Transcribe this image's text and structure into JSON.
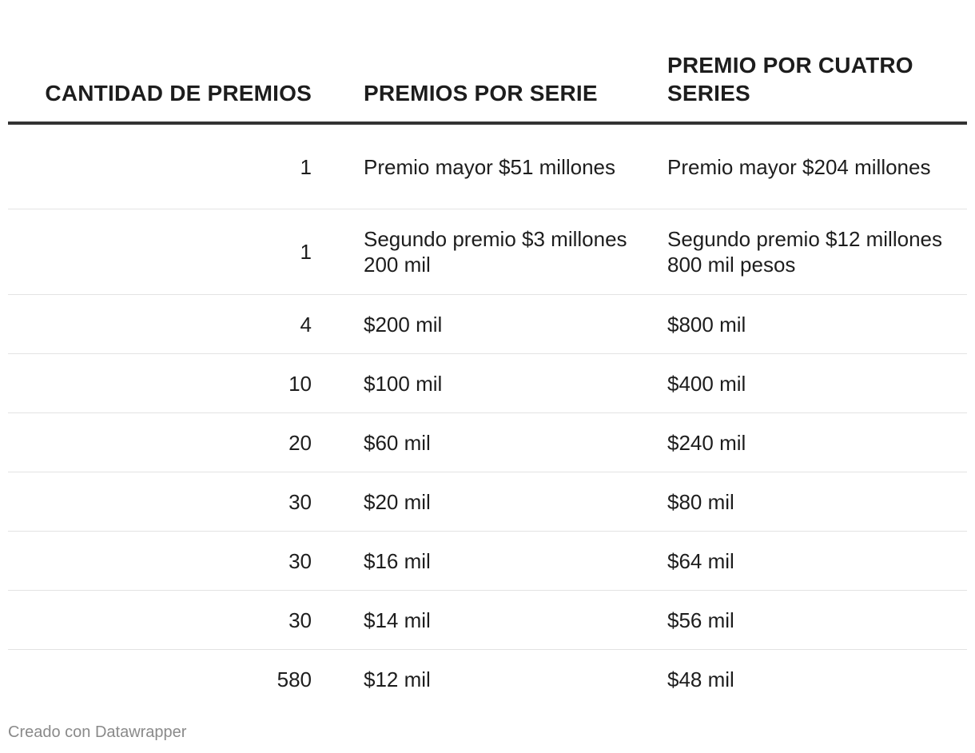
{
  "chart_data": {
    "type": "table",
    "columns": [
      "CANTIDAD DE PREMIOS",
      "PREMIOS POR SERIE",
      "PREMIO POR CUATRO SERIES"
    ],
    "rows": [
      [
        "1",
        "Premio mayor $51 millones",
        "Premio mayor $204 millones"
      ],
      [
        "1",
        "Segundo premio $3 millones 200 mil",
        "Segundo premio $12 millones 800 mil pesos"
      ],
      [
        "4",
        "$200 mil",
        "$800 mil"
      ],
      [
        "10",
        "$100 mil",
        "$400 mil"
      ],
      [
        "20",
        "$60 mil",
        "$240 mil"
      ],
      [
        "30",
        "$20 mil",
        "$80 mil"
      ],
      [
        "30",
        "$16 mil",
        "$64 mil"
      ],
      [
        "30",
        "$14 mil",
        "$56 mil"
      ],
      [
        "580",
        "$12 mil",
        "$48 mil"
      ]
    ]
  },
  "footer": {
    "credit": "Creado con Datawrapper"
  }
}
